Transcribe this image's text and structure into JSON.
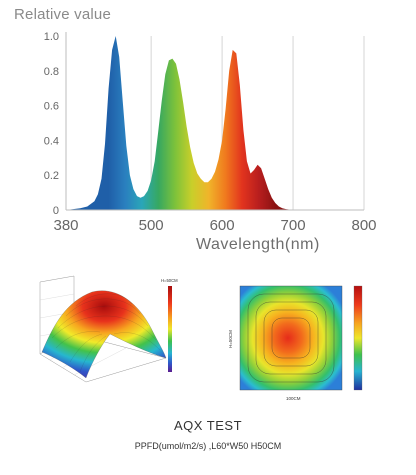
{
  "chart_data": [
    {
      "type": "area",
      "title": "Relative value",
      "xlabel": "Wavelength(nm)",
      "ylabel": "Relative value",
      "xlim": [
        380,
        800
      ],
      "ylim": [
        0,
        1.0
      ],
      "x_ticks": [
        "380",
        "500",
        "600",
        "700",
        "800"
      ],
      "y_ticks": [
        "0",
        "0.2",
        "0.4",
        "0.6",
        "0.8",
        "1.0"
      ],
      "grid": "vertical",
      "fill": "visible-spectrum gradient",
      "series": [
        {
          "x": [
            380,
            400,
            410,
            420,
            425,
            430,
            435,
            440,
            445,
            450,
            455,
            460,
            465,
            470,
            475,
            480,
            485,
            490,
            495,
            500,
            505,
            510,
            515,
            520,
            525,
            530,
            535,
            540,
            545,
            550,
            555,
            560,
            565,
            570,
            575,
            580,
            585,
            590,
            595,
            600,
            605,
            610,
            615,
            620,
            625,
            630,
            635,
            640,
            645,
            650,
            655,
            660,
            665,
            670,
            675,
            680,
            685,
            690,
            700,
            710,
            720,
            730
          ],
          "values": [
            0,
            0.01,
            0.02,
            0.05,
            0.09,
            0.18,
            0.38,
            0.7,
            0.92,
            1.0,
            0.88,
            0.62,
            0.37,
            0.2,
            0.12,
            0.08,
            0.07,
            0.08,
            0.11,
            0.17,
            0.28,
            0.45,
            0.63,
            0.78,
            0.86,
            0.87,
            0.84,
            0.75,
            0.62,
            0.48,
            0.36,
            0.27,
            0.21,
            0.18,
            0.16,
            0.16,
            0.18,
            0.22,
            0.29,
            0.4,
            0.58,
            0.8,
            0.92,
            0.9,
            0.72,
            0.46,
            0.28,
            0.21,
            0.23,
            0.26,
            0.24,
            0.18,
            0.12,
            0.07,
            0.04,
            0.02,
            0.01,
            0.005,
            0,
            0,
            0,
            0
          ]
        }
      ]
    },
    {
      "type": "surface-3d",
      "colorbar_title": "H=50CM",
      "colormap": "jet"
    },
    {
      "type": "heatmap",
      "ylabel": "H=50CM",
      "xlabel": "100CM",
      "colormap": "jet"
    }
  ],
  "caption": {
    "title": "AQX TEST",
    "subtitle": "PPFD(umol/m2/s) ,L60*W50 H50CM"
  },
  "colors": {
    "spectrum": [
      "#1f5fa8",
      "#2a7fbf",
      "#2aa6b8",
      "#37a860",
      "#7ec23a",
      "#c9cf2a",
      "#f0b42a",
      "#f07a1e",
      "#e2341e",
      "#b81e1e",
      "#8a1212"
    ]
  }
}
